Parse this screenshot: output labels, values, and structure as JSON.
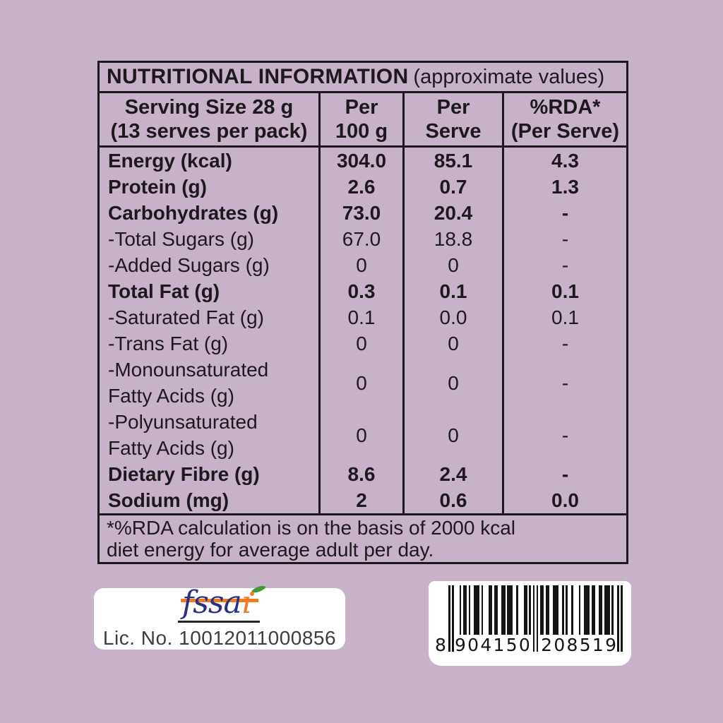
{
  "colors": {
    "bg": "#c7b2ca",
    "ink": "#1d181d",
    "navy": "#2b3087",
    "orange": "#f47a20",
    "green": "#3f9b35"
  },
  "table": {
    "title_bold": "NUTRITIONAL INFORMATION",
    "title_rest": "(approximate values)",
    "column_headers": [
      "Serving Size 28 g\n(13 serves per pack)",
      "Per\n100 g",
      "Per\nServe",
      "%RDA*\n(Per Serve)"
    ],
    "rows": [
      {
        "label": "Energy (kcal)",
        "per_100g": "304.0",
        "per_serve": "85.1",
        "rda": "4.3",
        "bold": true
      },
      {
        "label": "Protein (g)",
        "per_100g": "2.6",
        "per_serve": "0.7",
        "rda": "1.3",
        "bold": true
      },
      {
        "label": "Carbohydrates (g)",
        "per_100g": "73.0",
        "per_serve": "20.4",
        "rda": "-",
        "bold": true
      },
      {
        "label": "-Total Sugars (g)",
        "per_100g": "67.0",
        "per_serve": "18.8",
        "rda": "-",
        "bold": false
      },
      {
        "label": "-Added Sugars (g)",
        "per_100g": "0",
        "per_serve": "0",
        "rda": "-",
        "bold": false
      },
      {
        "label": "Total Fat (g)",
        "per_100g": "0.3",
        "per_serve": "0.1",
        "rda": "0.1",
        "bold": true
      },
      {
        "label": "-Saturated Fat (g)",
        "per_100g": "0.1",
        "per_serve": "0.0",
        "rda": "0.1",
        "bold": false
      },
      {
        "label": "-Trans Fat (g)",
        "per_100g": "0",
        "per_serve": "0",
        "rda": "-",
        "bold": false
      },
      {
        "label": "-Monounsaturated\nFatty Acids (g)",
        "per_100g": "0",
        "per_serve": "0",
        "rda": "-",
        "bold": false
      },
      {
        "label": "-Polyunsaturated\nFatty Acids (g)",
        "per_100g": "0",
        "per_serve": "0",
        "rda": "-",
        "bold": false
      },
      {
        "label": "Dietary Fibre (g)",
        "per_100g": "8.6",
        "per_serve": "2.4",
        "rda": "-",
        "bold": true
      },
      {
        "label": "Sodium (mg)",
        "per_100g": "2",
        "per_serve": "0.6",
        "rda": "0.0",
        "bold": true
      }
    ],
    "footnote": "*%RDA calculation is on the basis of 2000 kcal\ndiet energy for average adult per day."
  },
  "fssai": {
    "logo_text": "fssai",
    "license": "Lic. No. 10012011000856"
  },
  "barcode": {
    "value": "8904150208519",
    "display_left": "8",
    "display_group1": "904150",
    "display_group2": "208519"
  }
}
